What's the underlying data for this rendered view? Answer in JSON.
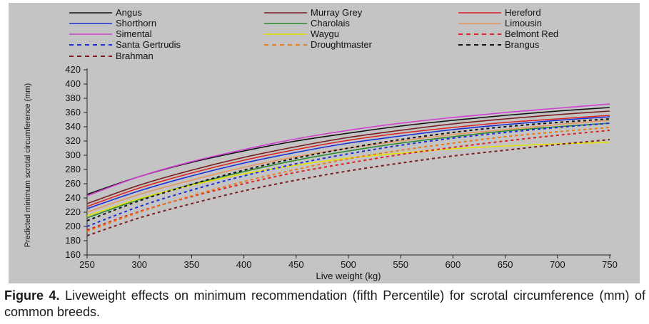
{
  "chart_data": {
    "type": "line",
    "title": "",
    "xlabel": "Live weight (kg)",
    "ylabel": "Predicted minimum scrotal circumference (mm)",
    "xlim": [
      250,
      750
    ],
    "ylim": [
      160,
      420
    ],
    "x_ticks": [
      "250",
      "300",
      "350",
      "400",
      "450",
      "500",
      "550",
      "600",
      "650",
      "700",
      "750"
    ],
    "y_ticks": [
      "160",
      "180",
      "200",
      "220",
      "240",
      "260",
      "280",
      "300",
      "320",
      "340",
      "360",
      "380",
      "400",
      "420"
    ],
    "grid": false,
    "legend_position": "top",
    "x": [
      250,
      300,
      350,
      400,
      450,
      500,
      550,
      600,
      650,
      700,
      750
    ],
    "series": [
      {
        "name": "Angus",
        "color": "#111111",
        "dash": false,
        "values": [
          245,
          270,
          290,
          306,
          320,
          331,
          341,
          349,
          356,
          362,
          367
        ]
      },
      {
        "name": "Murray Grey",
        "color": "#7a1c1c",
        "dash": false,
        "values": [
          232,
          258,
          279,
          297,
          312,
          325,
          335,
          344,
          351,
          357,
          362
        ]
      },
      {
        "name": "Hereford",
        "color": "#dd2222",
        "dash": false,
        "values": [
          228,
          254,
          275,
          293,
          308,
          321,
          331,
          339,
          346,
          351,
          356
        ]
      },
      {
        "name": "Shorthorn",
        "color": "#1a2fd6",
        "dash": false,
        "values": [
          225,
          250,
          271,
          289,
          304,
          317,
          327,
          336,
          343,
          349,
          354
        ]
      },
      {
        "name": "Charolais",
        "color": "#2a8a2a",
        "dash": false,
        "values": [
          212,
          238,
          259,
          277,
          293,
          306,
          317,
          326,
          334,
          340,
          345
        ]
      },
      {
        "name": "Limousin",
        "color": "#e8955a",
        "dash": false,
        "values": [
          220,
          245,
          265,
          283,
          298,
          310,
          320,
          329,
          336,
          343,
          349
        ]
      },
      {
        "name": "Simental",
        "color": "#d23cd2",
        "dash": false,
        "values": [
          243,
          270,
          291,
          308,
          323,
          335,
          345,
          353,
          360,
          366,
          372
        ]
      },
      {
        "name": "Waygu",
        "color": "#e6e200",
        "dash": false,
        "values": [
          215,
          239,
          258,
          274,
          286,
          296,
          303,
          309,
          313,
          316,
          318
        ]
      },
      {
        "name": "Belmont Red",
        "color": "#dd2222",
        "dash": true,
        "values": [
          195,
          221,
          242,
          260,
          276,
          289,
          301,
          311,
          320,
          328,
          335
        ]
      },
      {
        "name": "Santa Gertrudis",
        "color": "#1a2fd6",
        "dash": true,
        "values": [
          200,
          228,
          251,
          271,
          288,
          302,
          314,
          324,
          332,
          339,
          345
        ]
      },
      {
        "name": "Droughtmaster",
        "color": "#e87a1a",
        "dash": true,
        "values": [
          193,
          220,
          243,
          263,
          280,
          295,
          307,
          317,
          326,
          333,
          339
        ]
      },
      {
        "name": "Brangus",
        "color": "#111111",
        "dash": true,
        "values": [
          208,
          236,
          259,
          279,
          296,
          310,
          322,
          332,
          340,
          346,
          351
        ]
      },
      {
        "name": "Brahman",
        "color": "#7a1c1c",
        "dash": true,
        "values": [
          187,
          212,
          232,
          250,
          265,
          278,
          289,
          299,
          307,
          315,
          322
        ]
      }
    ]
  },
  "caption": {
    "label": "Figure 4.",
    "text": "Liveweight effects on minimum recommendation (fifth Percentile) for scrotal circumference (mm) of common breeds."
  }
}
